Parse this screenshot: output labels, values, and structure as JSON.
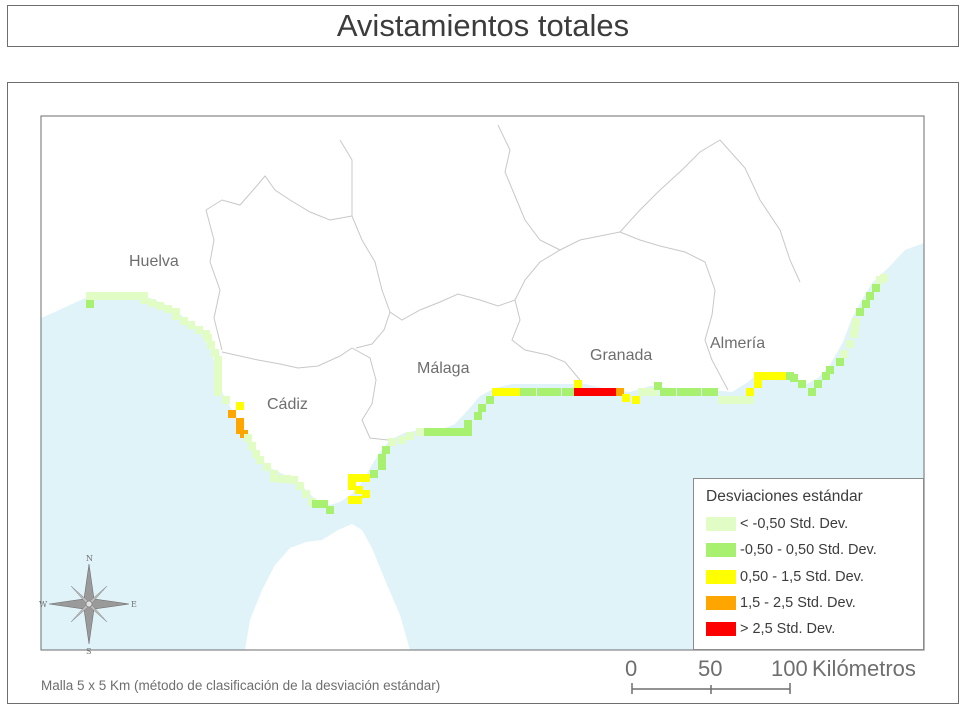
{
  "title": "Avistamientos totales",
  "places": {
    "huelva": "Huelva",
    "cadiz": "Cádiz",
    "malaga": "Málaga",
    "granada": "Granada",
    "almeria": "Almería"
  },
  "legend": {
    "title": "Desviaciones estándar",
    "items": [
      {
        "label": "< -0,50 Std. Dev.",
        "color": "#e1fcc4"
      },
      {
        "label": "-0,50 - 0,50 Std. Dev.",
        "color": "#a8f070"
      },
      {
        "label": "0,50 - 1,5 Std. Dev.",
        "color": "#ffff00"
      },
      {
        "label": "1,5 - 2,5 Std. Dev.",
        "color": "#ffa500"
      },
      {
        "label": "> 2,5 Std. Dev.",
        "color": "#ff0000"
      }
    ]
  },
  "scale": {
    "ticks": [
      "0",
      "50",
      "100"
    ],
    "unit": "Kilómetros"
  },
  "compass": {
    "n": "N",
    "s": "S",
    "e": "E",
    "w": "W"
  },
  "footnote": "Malla 5 x 5 Km (método de clasificación de la desviación estándar)",
  "colors": {
    "sea": "#e0f3f9",
    "land": "#ffffff",
    "border": "#c8c8c8"
  }
}
